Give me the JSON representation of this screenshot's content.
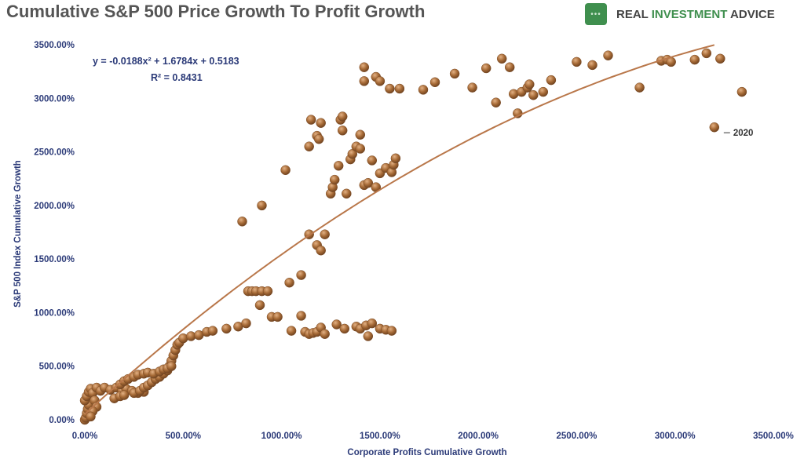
{
  "header": {
    "title": "Cumulative S&P 500 Price Growth To Profit Growth",
    "brand_part1": "REAL ",
    "brand_part2": "INVESTMENT",
    "brand_part3": " ADVICE",
    "brand_logo_icon": "green-rounded-square-logo-icon"
  },
  "colors": {
    "marker": "#a0632e",
    "trend": "#b9774a",
    "text": "#2b3a78",
    "brand": "#3f8f4e"
  },
  "chart_data": {
    "type": "scatter",
    "xlabel": "Corporate Profits Cumulative Growth",
    "ylabel": "S&P 500 Index Cumulative Growth",
    "xlim": [
      0,
      3500
    ],
    "ylim": [
      0,
      3500
    ],
    "x_ticks": [
      "0.00%",
      "500.00%",
      "1000.00%",
      "1500.00%",
      "2000.00%",
      "2500.00%",
      "3000.00%",
      "3500.00%"
    ],
    "y_ticks": [
      "0.00%",
      "500.00%",
      "1000.00%",
      "1500.00%",
      "2000.00%",
      "2500.00%",
      "3000.00%",
      "3500.00%"
    ],
    "grid": false,
    "legend": "none",
    "trendline": {
      "type": "polynomial",
      "equation": "y = -0.0188x² + 1.6784x + 0.5183",
      "r2": "R² = 0.8431",
      "x_range": [
        0,
        3200
      ]
    },
    "annotation": {
      "label": "2020",
      "x": 3200,
      "y": 2730
    },
    "points": [
      [
        0,
        0
      ],
      [
        5,
        20
      ],
      [
        10,
        60
      ],
      [
        15,
        100
      ],
      [
        20,
        140
      ],
      [
        0,
        180
      ],
      [
        10,
        220
      ],
      [
        20,
        260
      ],
      [
        30,
        290
      ],
      [
        40,
        250
      ],
      [
        50,
        180
      ],
      [
        60,
        120
      ],
      [
        40,
        80
      ],
      [
        30,
        30
      ],
      [
        60,
        300
      ],
      [
        80,
        270
      ],
      [
        100,
        300
      ],
      [
        130,
        280
      ],
      [
        160,
        300
      ],
      [
        190,
        270
      ],
      [
        210,
        290
      ],
      [
        240,
        270
      ],
      [
        270,
        250
      ],
      [
        300,
        260
      ],
      [
        150,
        200
      ],
      [
        180,
        220
      ],
      [
        200,
        230
      ],
      [
        250,
        250
      ],
      [
        280,
        270
      ],
      [
        300,
        300
      ],
      [
        320,
        320
      ],
      [
        340,
        350
      ],
      [
        360,
        380
      ],
      [
        380,
        400
      ],
      [
        400,
        430
      ],
      [
        420,
        460
      ],
      [
        430,
        500
      ],
      [
        440,
        550
      ],
      [
        450,
        600
      ],
      [
        460,
        650
      ],
      [
        470,
        700
      ],
      [
        480,
        720
      ],
      [
        180,
        330
      ],
      [
        200,
        360
      ],
      [
        220,
        380
      ],
      [
        250,
        400
      ],
      [
        270,
        420
      ],
      [
        300,
        430
      ],
      [
        320,
        440
      ],
      [
        350,
        430
      ],
      [
        380,
        450
      ],
      [
        400,
        470
      ],
      [
        420,
        480
      ],
      [
        440,
        500
      ],
      [
        500,
        760
      ],
      [
        540,
        780
      ],
      [
        580,
        790
      ],
      [
        620,
        820
      ],
      [
        650,
        830
      ],
      [
        720,
        850
      ],
      [
        780,
        870
      ],
      [
        820,
        900
      ],
      [
        830,
        1200
      ],
      [
        850,
        1200
      ],
      [
        870,
        1200
      ],
      [
        900,
        1200
      ],
      [
        930,
        1200
      ],
      [
        890,
        1070
      ],
      [
        950,
        960
      ],
      [
        980,
        960
      ],
      [
        1040,
        1280
      ],
      [
        1100,
        1350
      ],
      [
        1050,
        830
      ],
      [
        1100,
        970
      ],
      [
        1120,
        820
      ],
      [
        1140,
        800
      ],
      [
        1160,
        810
      ],
      [
        1180,
        820
      ],
      [
        1200,
        860
      ],
      [
        1220,
        800
      ],
      [
        1280,
        890
      ],
      [
        1320,
        850
      ],
      [
        1380,
        870
      ],
      [
        1400,
        850
      ],
      [
        1430,
        880
      ],
      [
        1440,
        780
      ],
      [
        1460,
        900
      ],
      [
        1500,
        850
      ],
      [
        1530,
        840
      ],
      [
        1560,
        830
      ],
      [
        800,
        1850
      ],
      [
        900,
        2000
      ],
      [
        1020,
        2330
      ],
      [
        1140,
        1730
      ],
      [
        1180,
        1630
      ],
      [
        1200,
        1580
      ],
      [
        1220,
        1730
      ],
      [
        1140,
        2550
      ],
      [
        1150,
        2800
      ],
      [
        1180,
        2650
      ],
      [
        1190,
        2620
      ],
      [
        1200,
        2770
      ],
      [
        1250,
        2110
      ],
      [
        1260,
        2170
      ],
      [
        1270,
        2240
      ],
      [
        1290,
        2370
      ],
      [
        1300,
        2800
      ],
      [
        1310,
        2830
      ],
      [
        1310,
        2700
      ],
      [
        1330,
        2110
      ],
      [
        1350,
        2430
      ],
      [
        1360,
        2480
      ],
      [
        1380,
        2550
      ],
      [
        1400,
        2530
      ],
      [
        1400,
        2660
      ],
      [
        1420,
        2190
      ],
      [
        1440,
        2210
      ],
      [
        1460,
        2420
      ],
      [
        1480,
        2170
      ],
      [
        1500,
        2300
      ],
      [
        1530,
        2350
      ],
      [
        1560,
        2310
      ],
      [
        1570,
        2380
      ],
      [
        1580,
        2440
      ],
      [
        1420,
        3290
      ],
      [
        1420,
        3160
      ],
      [
        1480,
        3200
      ],
      [
        1500,
        3160
      ],
      [
        1550,
        3090
      ],
      [
        1600,
        3090
      ],
      [
        1720,
        3080
      ],
      [
        1780,
        3150
      ],
      [
        1880,
        3230
      ],
      [
        1970,
        3100
      ],
      [
        2040,
        3280
      ],
      [
        2090,
        2960
      ],
      [
        2120,
        3370
      ],
      [
        2160,
        3290
      ],
      [
        2180,
        3040
      ],
      [
        2200,
        2860
      ],
      [
        2220,
        3060
      ],
      [
        2250,
        3100
      ],
      [
        2260,
        3130
      ],
      [
        2280,
        3030
      ],
      [
        2330,
        3060
      ],
      [
        2370,
        3170
      ],
      [
        2500,
        3340
      ],
      [
        2580,
        3310
      ],
      [
        2660,
        3400
      ],
      [
        2820,
        3100
      ],
      [
        2930,
        3350
      ],
      [
        2960,
        3360
      ],
      [
        2980,
        3340
      ],
      [
        3100,
        3360
      ],
      [
        3160,
        3420
      ],
      [
        3230,
        3370
      ],
      [
        3340,
        3060
      ],
      [
        3200,
        2730
      ]
    ]
  }
}
